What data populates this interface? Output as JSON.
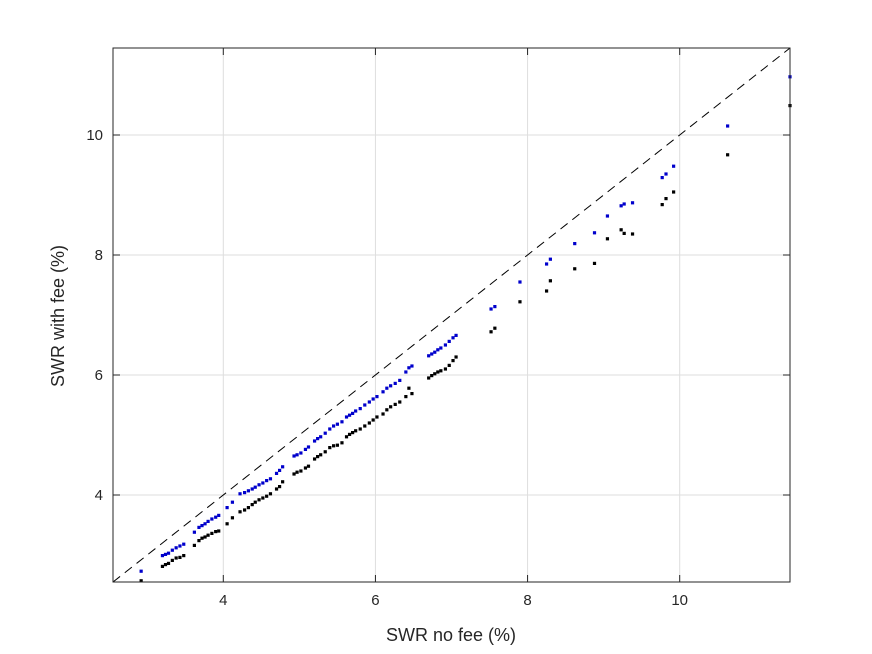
{
  "chart_data": {
    "type": "scatter",
    "xlabel": "SWR no fee (%)",
    "ylabel": "SWR with fee (%)",
    "xlim": [
      2.55,
      11.45
    ],
    "ylim": [
      2.55,
      11.45
    ],
    "xticks": [
      4,
      6,
      8,
      10
    ],
    "yticks": [
      4,
      6,
      8,
      10
    ],
    "grid": true,
    "reference_line": {
      "style": "dashed",
      "color": "#000000",
      "from": [
        2.55,
        2.55
      ],
      "to": [
        11.45,
        11.45
      ]
    },
    "series": [
      {
        "color": "#0000cc",
        "points": [
          [
            2.92,
            2.73
          ],
          [
            3.2,
            2.99
          ],
          [
            3.24,
            3.01
          ],
          [
            3.28,
            3.03
          ],
          [
            3.33,
            3.08
          ],
          [
            3.38,
            3.12
          ],
          [
            3.43,
            3.15
          ],
          [
            3.48,
            3.18
          ],
          [
            3.62,
            3.38
          ],
          [
            3.68,
            3.46
          ],
          [
            3.72,
            3.49
          ],
          [
            3.76,
            3.52
          ],
          [
            3.8,
            3.56
          ],
          [
            3.85,
            3.6
          ],
          [
            3.9,
            3.63
          ],
          [
            3.94,
            3.66
          ],
          [
            4.05,
            3.79
          ],
          [
            4.12,
            3.88
          ],
          [
            4.22,
            4.02
          ],
          [
            4.28,
            4.04
          ],
          [
            4.33,
            4.07
          ],
          [
            4.38,
            4.1
          ],
          [
            4.42,
            4.13
          ],
          [
            4.47,
            4.17
          ],
          [
            4.52,
            4.2
          ],
          [
            4.57,
            4.24
          ],
          [
            4.62,
            4.27
          ],
          [
            4.7,
            4.36
          ],
          [
            4.74,
            4.41
          ],
          [
            4.78,
            4.47
          ],
          [
            4.93,
            4.65
          ],
          [
            4.97,
            4.67
          ],
          [
            5.02,
            4.7
          ],
          [
            5.08,
            4.76
          ],
          [
            5.12,
            4.8
          ],
          [
            5.2,
            4.9
          ],
          [
            5.24,
            4.94
          ],
          [
            5.28,
            4.97
          ],
          [
            5.34,
            5.03
          ],
          [
            5.4,
            5.1
          ],
          [
            5.45,
            5.15
          ],
          [
            5.5,
            5.18
          ],
          [
            5.56,
            5.22
          ],
          [
            5.62,
            5.3
          ],
          [
            5.66,
            5.33
          ],
          [
            5.7,
            5.36
          ],
          [
            5.74,
            5.4
          ],
          [
            5.8,
            5.44
          ],
          [
            5.86,
            5.5
          ],
          [
            5.92,
            5.55
          ],
          [
            5.97,
            5.6
          ],
          [
            6.02,
            5.64
          ],
          [
            6.1,
            5.72
          ],
          [
            6.15,
            5.78
          ],
          [
            6.2,
            5.82
          ],
          [
            6.26,
            5.86
          ],
          [
            6.32,
            5.91
          ],
          [
            6.4,
            6.05
          ],
          [
            6.44,
            6.12
          ],
          [
            6.48,
            6.15
          ],
          [
            6.7,
            6.32
          ],
          [
            6.74,
            6.35
          ],
          [
            6.78,
            6.38
          ],
          [
            6.82,
            6.42
          ],
          [
            6.86,
            6.45
          ],
          [
            6.92,
            6.5
          ],
          [
            6.97,
            6.56
          ],
          [
            7.02,
            6.62
          ],
          [
            7.06,
            6.66
          ],
          [
            7.52,
            7.1
          ],
          [
            7.57,
            7.14
          ],
          [
            7.9,
            7.55
          ],
          [
            8.25,
            7.85
          ],
          [
            8.3,
            7.93
          ],
          [
            8.62,
            8.19
          ],
          [
            8.88,
            8.37
          ],
          [
            9.05,
            8.65
          ],
          [
            9.23,
            8.82
          ],
          [
            9.27,
            8.85
          ],
          [
            9.38,
            8.87
          ],
          [
            9.77,
            9.29
          ],
          [
            9.82,
            9.35
          ],
          [
            9.92,
            9.48
          ],
          [
            10.63,
            10.15
          ],
          [
            11.45,
            10.97
          ]
        ]
      },
      {
        "color": "#000000",
        "points": [
          [
            2.92,
            2.57
          ],
          [
            3.2,
            2.81
          ],
          [
            3.24,
            2.84
          ],
          [
            3.28,
            2.86
          ],
          [
            3.33,
            2.91
          ],
          [
            3.38,
            2.95
          ],
          [
            3.43,
            2.96
          ],
          [
            3.48,
            2.99
          ],
          [
            3.62,
            3.16
          ],
          [
            3.68,
            3.24
          ],
          [
            3.72,
            3.28
          ],
          [
            3.76,
            3.3
          ],
          [
            3.8,
            3.33
          ],
          [
            3.85,
            3.36
          ],
          [
            3.9,
            3.39
          ],
          [
            3.94,
            3.4
          ],
          [
            4.05,
            3.52
          ],
          [
            4.12,
            3.62
          ],
          [
            4.22,
            3.72
          ],
          [
            4.28,
            3.75
          ],
          [
            4.33,
            3.79
          ],
          [
            4.38,
            3.84
          ],
          [
            4.42,
            3.88
          ],
          [
            4.47,
            3.92
          ],
          [
            4.52,
            3.95
          ],
          [
            4.57,
            3.98
          ],
          [
            4.62,
            4.02
          ],
          [
            4.7,
            4.1
          ],
          [
            4.74,
            4.14
          ],
          [
            4.78,
            4.22
          ],
          [
            4.93,
            4.35
          ],
          [
            4.97,
            4.38
          ],
          [
            5.02,
            4.4
          ],
          [
            5.08,
            4.45
          ],
          [
            5.12,
            4.48
          ],
          [
            5.2,
            4.6
          ],
          [
            5.24,
            4.64
          ],
          [
            5.28,
            4.67
          ],
          [
            5.34,
            4.72
          ],
          [
            5.4,
            4.79
          ],
          [
            5.45,
            4.82
          ],
          [
            5.5,
            4.83
          ],
          [
            5.56,
            4.87
          ],
          [
            5.62,
            4.97
          ],
          [
            5.66,
            5.01
          ],
          [
            5.7,
            5.04
          ],
          [
            5.74,
            5.07
          ],
          [
            5.8,
            5.1
          ],
          [
            5.86,
            5.15
          ],
          [
            5.92,
            5.2
          ],
          [
            5.97,
            5.25
          ],
          [
            6.02,
            5.3
          ],
          [
            6.1,
            5.35
          ],
          [
            6.15,
            5.42
          ],
          [
            6.2,
            5.47
          ],
          [
            6.26,
            5.51
          ],
          [
            6.32,
            5.55
          ],
          [
            6.4,
            5.64
          ],
          [
            6.44,
            5.78
          ],
          [
            6.48,
            5.69
          ],
          [
            6.7,
            5.95
          ],
          [
            6.74,
            5.99
          ],
          [
            6.78,
            6.02
          ],
          [
            6.82,
            6.05
          ],
          [
            6.86,
            6.07
          ],
          [
            6.92,
            6.1
          ],
          [
            6.97,
            6.16
          ],
          [
            7.02,
            6.24
          ],
          [
            7.06,
            6.3
          ],
          [
            7.52,
            6.72
          ],
          [
            7.57,
            6.78
          ],
          [
            7.9,
            7.22
          ],
          [
            8.25,
            7.4
          ],
          [
            8.3,
            7.57
          ],
          [
            8.62,
            7.77
          ],
          [
            8.88,
            7.86
          ],
          [
            9.05,
            8.27
          ],
          [
            9.23,
            8.42
          ],
          [
            9.27,
            8.36
          ],
          [
            9.38,
            8.35
          ],
          [
            9.77,
            8.84
          ],
          [
            9.82,
            8.94
          ],
          [
            9.92,
            9.05
          ],
          [
            10.63,
            9.67
          ],
          [
            11.45,
            10.49
          ]
        ]
      }
    ]
  }
}
